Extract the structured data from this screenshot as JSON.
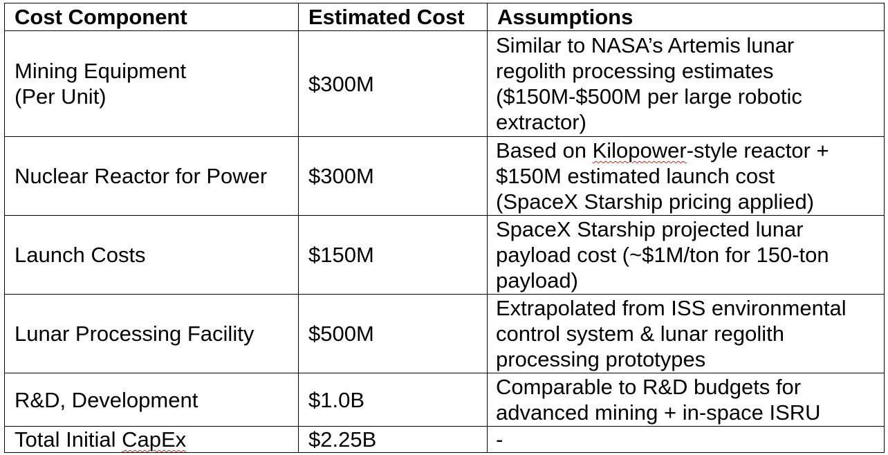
{
  "table": {
    "headers": [
      "Cost Component",
      "Estimated Cost",
      "Assumptions"
    ],
    "rows": [
      {
        "component_lines": [
          "Mining Equipment",
          "(Per Unit)"
        ],
        "cost": "$300M",
        "assumption_lines": [
          "Similar to NASA’s Artemis lunar",
          "regolith processing estimates",
          "($150M-$500M per large robotic",
          "extractor)"
        ]
      },
      {
        "component_lines": [
          "Nuclear Reactor for Power"
        ],
        "cost": "$300M",
        "assumption_pre": "Based on ",
        "assumption_flagged": "Kilopower",
        "assumption_post": "-style reactor +",
        "assumption_lines": [
          "$150M estimated launch cost",
          "(SpaceX Starship pricing applied)"
        ]
      },
      {
        "component_lines": [
          "Launch Costs"
        ],
        "cost": "$150M",
        "assumption_lines": [
          "SpaceX Starship projected lunar",
          "payload cost (~$1M/ton for 150-ton",
          "payload)"
        ]
      },
      {
        "component_lines": [
          "Lunar Processing Facility"
        ],
        "cost": "$500M",
        "assumption_lines": [
          "Extrapolated from ISS environmental",
          "control system & lunar regolith",
          "processing prototypes"
        ]
      },
      {
        "component_lines": [
          "R&D, Development"
        ],
        "cost": "$1.0B",
        "assumption_lines": [
          "Comparable to R&D budgets for",
          "advanced mining + in-space ISRU"
        ]
      },
      {
        "component_pre": "Total Initial ",
        "component_flagged": "CapEx",
        "cost": "$2.25B",
        "assumption_lines": [
          "-"
        ]
      }
    ]
  }
}
